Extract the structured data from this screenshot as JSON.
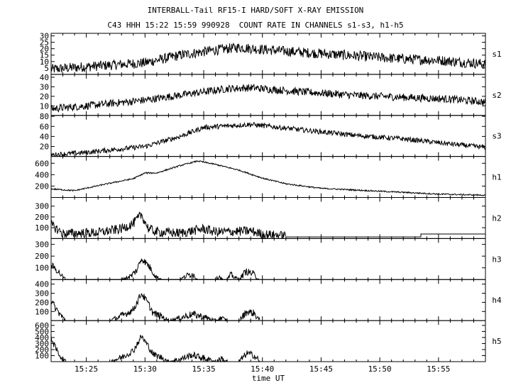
{
  "title": "INTERBALL-Tail RF15-I HARD/SOFT X-RAY EMISSION",
  "subtitle": "C43 HHH 15:22 15:59 990928  COUNT RATE IN CHANNELS s1-s3, h1-h5",
  "chart_data": {
    "type": "line",
    "xlabel": "time UT",
    "xlim": [
      "15:22",
      "15:59"
    ],
    "xticks": [
      "15:25",
      "15:30",
      "15:35",
      "15:40",
      "15:45",
      "15:50",
      "15:55"
    ],
    "grid": false,
    "panels": [
      {
        "name": "s1",
        "ylim": [
          0,
          32
        ],
        "yticks": [
          "5",
          "10",
          "15",
          "20",
          "25",
          "30"
        ],
        "x": [
          "15:22",
          "15:25",
          "15:30",
          "15:33",
          "15:36",
          "15:38",
          "15:42",
          "15:47",
          "15:52",
          "15:55",
          "15:59"
        ],
        "y": [
          4,
          6,
          9,
          15,
          19,
          21,
          18,
          15,
          12,
          11,
          8
        ],
        "noise": 4
      },
      {
        "name": "s2",
        "ylim": [
          0,
          43
        ],
        "yticks": [
          "10",
          "20",
          "30",
          "40"
        ],
        "x": [
          "15:22",
          "15:25",
          "15:30",
          "15:34",
          "15:37",
          "15:39",
          "15:43",
          "15:48",
          "15:52",
          "15:56",
          "15:59"
        ],
        "y": [
          7,
          10,
          16,
          23,
          28,
          29,
          25,
          21,
          19,
          17,
          14
        ],
        "noise": 4
      },
      {
        "name": "s3",
        "ylim": [
          0,
          82
        ],
        "yticks": [
          "20",
          "40",
          "60",
          "80"
        ],
        "x": [
          "15:22",
          "15:25",
          "15:30",
          "15:33",
          "15:35",
          "15:39",
          "15:43",
          "15:48",
          "15:52",
          "15:56",
          "15:59"
        ],
        "y": [
          3,
          8,
          20,
          40,
          58,
          64,
          54,
          42,
          35,
          25,
          18
        ],
        "noise": 5
      },
      {
        "name": "h1",
        "ylim": [
          0,
          720
        ],
        "yticks": [
          "200",
          "400",
          "600"
        ],
        "x": [
          "15:22",
          "15:24",
          "15:27",
          "15:29",
          "15:30",
          "15:31",
          "15:33",
          "15:34.5",
          "15:36",
          "15:38",
          "15:40",
          "15:42",
          "15:45",
          "15:50",
          "15:55",
          "15:59"
        ],
        "y": [
          150,
          120,
          250,
          330,
          430,
          430,
          560,
          640,
          580,
          480,
          340,
          240,
          160,
          110,
          60,
          40
        ],
        "noise": 12
      },
      {
        "name": "h2",
        "ylim": [
          0,
          380
        ],
        "yticks": [
          "100",
          "200",
          "300"
        ],
        "x": [
          "15:22",
          "15:22.7",
          "15:23",
          "15:26",
          "15:28",
          "15:29",
          "15:29.7",
          "15:30.3",
          "15:31",
          "15:33",
          "15:35",
          "15:36",
          "15:39",
          "15:40",
          "15:42"
        ],
        "y": [
          130,
          70,
          45,
          55,
          90,
          140,
          220,
          90,
          60,
          50,
          90,
          60,
          70,
          40,
          30
        ],
        "noise": 45
      },
      {
        "name": "h3",
        "ylim": [
          0,
          350
        ],
        "yticks": [
          "100",
          "200",
          "300"
        ],
        "x": [
          "15:22",
          "15:22.3",
          "15:22.7",
          "15:23",
          "15:23.3",
          "15:28",
          "15:28.8",
          "15:29.3",
          "15:29.7",
          "15:30.3",
          "15:30.7",
          "15:31",
          "15:31.5",
          "15:33",
          "15:33.5",
          "15:34",
          "15:34.5",
          "15:36",
          "15:36.3",
          "15:36.6",
          "15:37",
          "15:37.3",
          "15:38",
          "15:38.6",
          "15:39.2",
          "15:39.7"
        ],
        "y": [
          120,
          100,
          60,
          20,
          0,
          0,
          30,
          80,
          180,
          120,
          60,
          20,
          0,
          0,
          30,
          50,
          0,
          0,
          30,
          0,
          0,
          40,
          0,
          70,
          50,
          0
        ],
        "noise": 30
      },
      {
        "name": "h4",
        "ylim": [
          0,
          450
        ],
        "yticks": [
          "100",
          "200",
          "300",
          "400"
        ],
        "x": [
          "15:22",
          "15:22.3",
          "15:22.7",
          "15:23",
          "15:23.3",
          "15:27",
          "15:28",
          "15:29",
          "15:29.7",
          "15:30.3",
          "15:30.7",
          "15:31.5",
          "15:32",
          "15:33",
          "15:34",
          "15:35",
          "15:36",
          "15:36.5",
          "15:37",
          "15:38",
          "15:38.7",
          "15:39.3",
          "15:39.8"
        ],
        "y": [
          220,
          150,
          80,
          30,
          0,
          0,
          50,
          120,
          300,
          180,
          80,
          40,
          0,
          30,
          70,
          40,
          0,
          30,
          0,
          0,
          100,
          80,
          0
        ],
        "noise": 40
      },
      {
        "name": "h5",
        "ylim": [
          0,
          680
        ],
        "yticks": [
          "100",
          "200",
          "300",
          "400",
          "500",
          "600"
        ],
        "x": [
          "15:22",
          "15:22.3",
          "15:22.7",
          "15:23",
          "15:23.3",
          "15:27",
          "15:28",
          "15:29",
          "15:29.7",
          "15:30.3",
          "15:30.7",
          "15:31.5",
          "15:32",
          "15:33",
          "15:34",
          "15:35",
          "15:36",
          "15:36.5",
          "15:37",
          "15:38",
          "15:38.7",
          "15:39.3",
          "15:39.8"
        ],
        "y": [
          420,
          250,
          120,
          40,
          0,
          0,
          70,
          180,
          420,
          250,
          120,
          60,
          0,
          40,
          110,
          60,
          0,
          50,
          0,
          0,
          140,
          100,
          0
        ],
        "noise": 55
      }
    ],
    "h2_floor": [
      {
        "x": [
          "15:42",
          "15:53.5"
        ],
        "y": 15
      },
      {
        "x": [
          "15:53.5",
          "15:59"
        ],
        "y": 42
      }
    ]
  }
}
